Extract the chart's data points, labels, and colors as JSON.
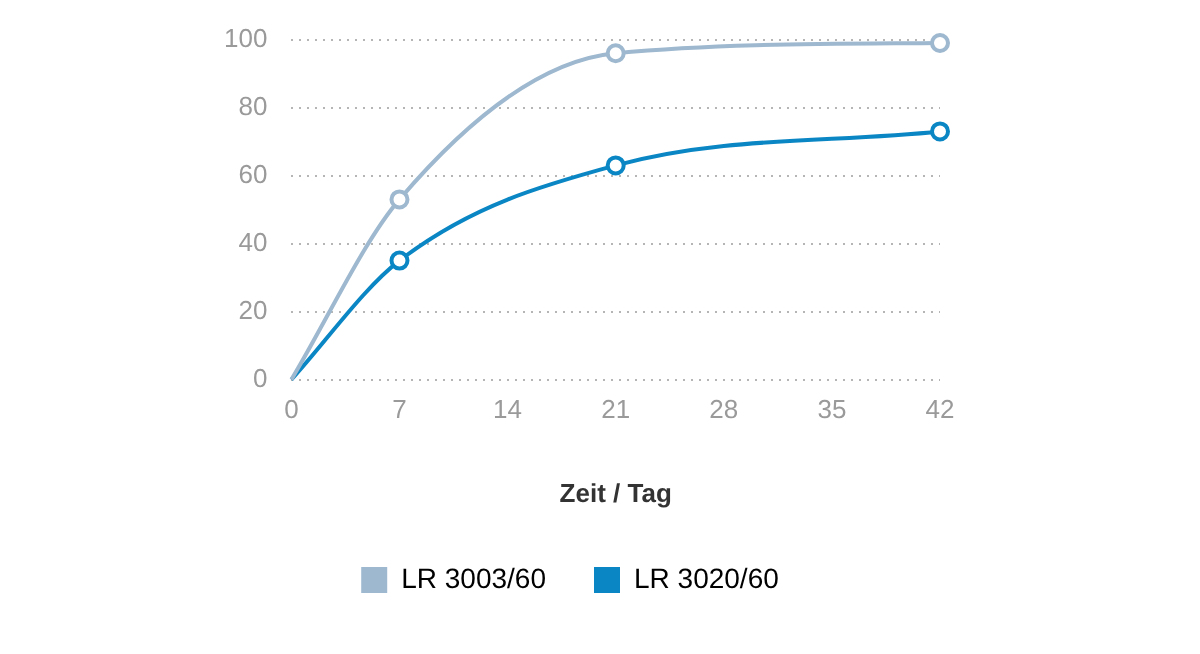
{
  "chart_data": {
    "type": "line",
    "xlabel": "Zeit / Tag",
    "x": [
      0,
      7,
      21,
      42
    ],
    "series": [
      {
        "name": "LR 3003/60",
        "color": "#9db8cf",
        "values": [
          0,
          53,
          96,
          99
        ]
      },
      {
        "name": "LR 3020/60",
        "color": "#0a86c4",
        "values": [
          0,
          35,
          63,
          73
        ]
      }
    ],
    "xlim": [
      0,
      42
    ],
    "xticks": [
      0,
      7,
      14,
      21,
      28,
      35,
      42
    ],
    "ylim": [
      0,
      100
    ],
    "yticks": [
      0,
      20,
      40,
      60,
      80,
      100
    ],
    "grid": "y",
    "legend": "bottom",
    "marker": "circle",
    "line_style": "solid"
  }
}
